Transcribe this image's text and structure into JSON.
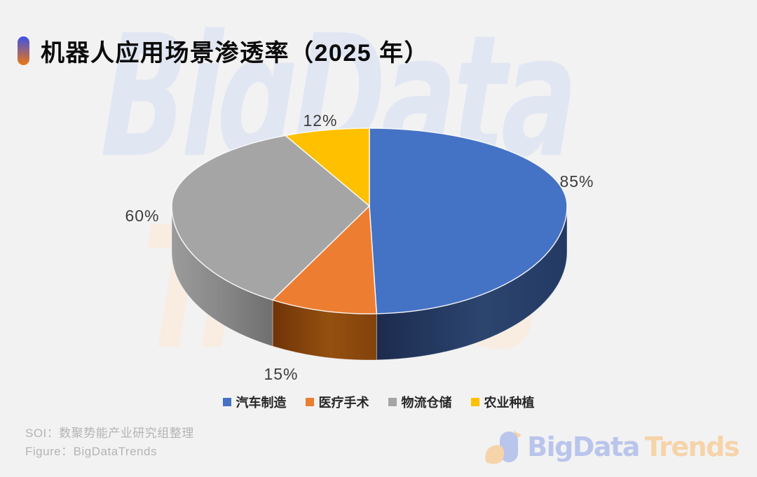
{
  "title": {
    "text": "机器人应用场景渗透率（2025 年）",
    "pill_color_top": "#3B51E9",
    "pill_color_bottom": "#EE7711"
  },
  "chart_data": {
    "type": "pie",
    "style": "3d-perspective",
    "title": "机器人应用场景渗透率（2025 年）",
    "unit": "%",
    "start_angle_deg": 0,
    "direction": "clockwise",
    "legend_position": "bottom",
    "series": [
      {
        "name": "汽车制造",
        "value": 85,
        "label": "85%",
        "color": "#4472C4",
        "side_dark": "#1C2B4E",
        "side_mid": "#2C456F",
        "side_end": "#233A63"
      },
      {
        "name": "医疗手术",
        "value": 15,
        "label": "15%",
        "color": "#ED7D31",
        "side_dark": "#6F3408",
        "side_mid": "#94500F",
        "side_end": "#83420C"
      },
      {
        "name": "物流仓储",
        "value": 60,
        "label": "60%",
        "color": "#A5A5A5",
        "side_dark": "#9B9B9B",
        "side_mid": "#858585",
        "side_end": "#6F6F6F"
      },
      {
        "name": "农业种植",
        "value": 12,
        "label": "12%",
        "color": "#FFC000",
        "side_dark": "#A37A00",
        "side_mid": "#B58A00",
        "side_end": "#A37A00"
      }
    ],
    "label_color": "#3D3D3D",
    "background_color": "#F2F2F2"
  },
  "watermark": {
    "line1": "BigData",
    "line2": "Trends"
  },
  "footer": {
    "source_line": "SOI：数聚势能产业研究组整理",
    "figure_line": "Figure：BigDataTrends"
  },
  "logo": {
    "text_primary": "BigData",
    "text_secondary": "Trends",
    "color_primary": "#B3BFEC",
    "color_secondary": "#F7CF9F",
    "icon": "bird-icon"
  }
}
